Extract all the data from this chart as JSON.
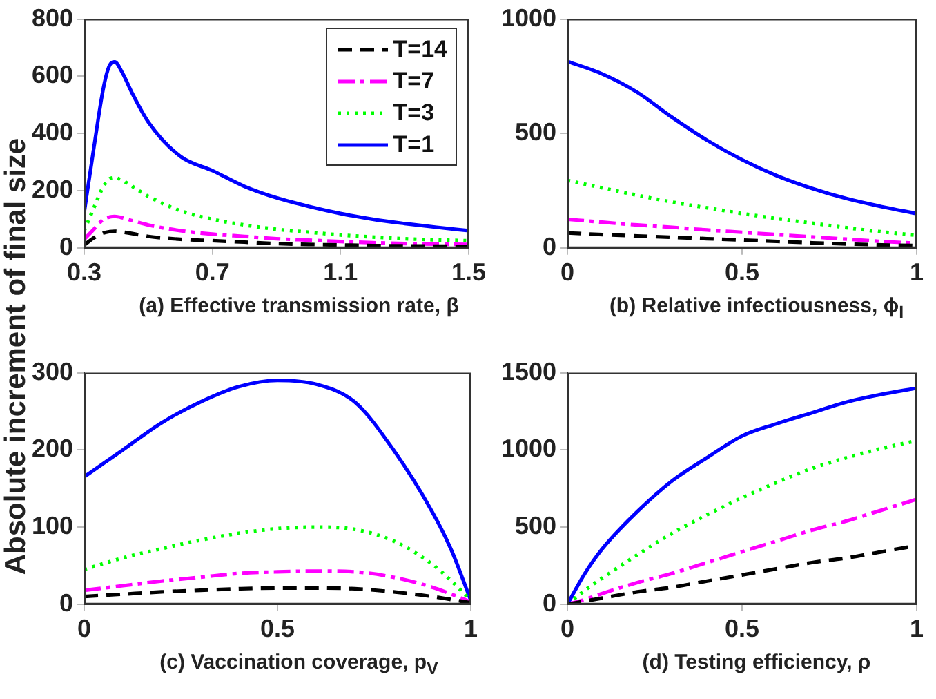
{
  "chart_data": [
    {
      "type": "line",
      "xlabel": "(a) Effective transmission rate, β",
      "ylabel": "Absolute increment of final size",
      "legend": "top right",
      "grid": false,
      "marker": "none",
      "x": [
        0.3,
        0.33,
        0.36,
        0.38,
        0.395,
        0.42,
        0.45,
        0.5,
        0.6,
        0.7,
        0.8,
        0.9,
        1.0,
        1.1,
        1.2,
        1.3,
        1.4,
        1.5
      ],
      "xlim": [
        0.3,
        1.5
      ],
      "xticks": [
        0.3,
        0.7,
        1.1,
        1.5
      ],
      "ylim": [
        0,
        800
      ],
      "yticks": [
        0,
        200,
        400,
        600,
        800
      ],
      "series": [
        {
          "name": "T=14",
          "color": "#000000",
          "line_style": "dashed",
          "values": [
            10,
            35,
            52,
            57,
            58,
            55,
            50,
            40,
            30,
            25,
            20,
            15,
            12,
            10,
            8,
            7,
            6,
            5
          ]
        },
        {
          "name": "T=7",
          "color": "#ff00ff",
          "line_style": "dashdot",
          "values": [
            30,
            65,
            100,
            108,
            110,
            105,
            95,
            80,
            60,
            48,
            40,
            32,
            27,
            22,
            18,
            15,
            13,
            12
          ]
        },
        {
          "name": "T=3",
          "color": "#00ff00",
          "line_style": "dotted",
          "values": [
            60,
            140,
            215,
            242,
            245,
            235,
            215,
            180,
            130,
            100,
            80,
            65,
            55,
            45,
            38,
            32,
            28,
            25
          ]
        },
        {
          "name": "T=1",
          "color": "#0000ff",
          "line_style": "solid",
          "values": [
            125,
            350,
            560,
            640,
            650,
            610,
            540,
            440,
            320,
            270,
            215,
            175,
            145,
            120,
            100,
            85,
            72,
            60
          ]
        }
      ]
    },
    {
      "type": "line",
      "xlabel": "(b) Relative infectiousness, ϕ$_{I}$",
      "grid": false,
      "marker": "none",
      "x": [
        0,
        0.1,
        0.2,
        0.3,
        0.4,
        0.5,
        0.6,
        0.7,
        0.8,
        0.9,
        1
      ],
      "xlim": [
        0,
        1
      ],
      "xticks": [
        0,
        0.5,
        1
      ],
      "ylim": [
        0,
        1000
      ],
      "yticks": [
        0,
        500,
        1000
      ],
      "series": [
        {
          "color": "#000000",
          "line_style": "dashed",
          "values": [
            65,
            58,
            52,
            46,
            40,
            34,
            28,
            22,
            17,
            13,
            10
          ]
        },
        {
          "color": "#ff00ff",
          "line_style": "dashdot",
          "values": [
            125,
            112,
            100,
            90,
            78,
            68,
            58,
            48,
            38,
            28,
            20
          ]
        },
        {
          "color": "#00ff00",
          "line_style": "dotted",
          "values": [
            295,
            262,
            230,
            200,
            175,
            150,
            128,
            108,
            88,
            70,
            55
          ]
        },
        {
          "color": "#0000ff",
          "line_style": "solid",
          "values": [
            815,
            760,
            680,
            570,
            470,
            385,
            315,
            260,
            215,
            180,
            150
          ]
        }
      ]
    },
    {
      "type": "line",
      "xlabel": "(c) Vaccination coverage, p$_{V}$",
      "grid": false,
      "marker": "none",
      "x": [
        0,
        0.1,
        0.2,
        0.3,
        0.4,
        0.5,
        0.6,
        0.7,
        0.8,
        0.9,
        0.95,
        1
      ],
      "xlim": [
        0,
        1
      ],
      "xticks": [
        0,
        0.5,
        1
      ],
      "ylim": [
        0,
        300
      ],
      "yticks": [
        0,
        100,
        200,
        300
      ],
      "series": [
        {
          "color": "#000000",
          "line_style": "dashed",
          "values": [
            10,
            13,
            16,
            18,
            20,
            21,
            21,
            20,
            16,
            10,
            6,
            2
          ]
        },
        {
          "color": "#ff00ff",
          "line_style": "dashdot",
          "values": [
            18,
            24,
            30,
            35,
            40,
            42,
            43,
            42,
            35,
            22,
            13,
            3
          ]
        },
        {
          "color": "#00ff00",
          "line_style": "dotted",
          "values": [
            45,
            60,
            72,
            83,
            92,
            98,
            100,
            97,
            82,
            52,
            30,
            5
          ]
        },
        {
          "color": "#0000ff",
          "line_style": "solid",
          "values": [
            165,
            200,
            235,
            262,
            282,
            290,
            285,
            262,
            200,
            120,
            70,
            5
          ]
        }
      ]
    },
    {
      "type": "line",
      "xlabel": "(d) Testing efficiency, ρ",
      "grid": false,
      "marker": "none",
      "x": [
        0,
        0.05,
        0.1,
        0.2,
        0.3,
        0.4,
        0.5,
        0.6,
        0.7,
        0.8,
        0.9,
        1
      ],
      "xlim": [
        0,
        1
      ],
      "xticks": [
        0,
        0.5,
        1
      ],
      "ylim": [
        0,
        1500
      ],
      "yticks": [
        0,
        500,
        1000,
        1500
      ],
      "series": [
        {
          "color": "#000000",
          "line_style": "dashed",
          "values": [
            0,
            20,
            40,
            80,
            110,
            150,
            190,
            230,
            270,
            300,
            340,
            380
          ]
        },
        {
          "color": "#ff00ff",
          "line_style": "dashdot",
          "values": [
            0,
            30,
            70,
            140,
            200,
            270,
            340,
            410,
            480,
            540,
            610,
            680
          ]
        },
        {
          "color": "#00ff00",
          "line_style": "dotted",
          "values": [
            0,
            90,
            170,
            320,
            460,
            580,
            690,
            790,
            880,
            950,
            1010,
            1060
          ]
        },
        {
          "color": "#0000ff",
          "line_style": "solid",
          "values": [
            0,
            200,
            360,
            600,
            800,
            950,
            1090,
            1170,
            1240,
            1310,
            1360,
            1400
          ]
        }
      ]
    }
  ]
}
